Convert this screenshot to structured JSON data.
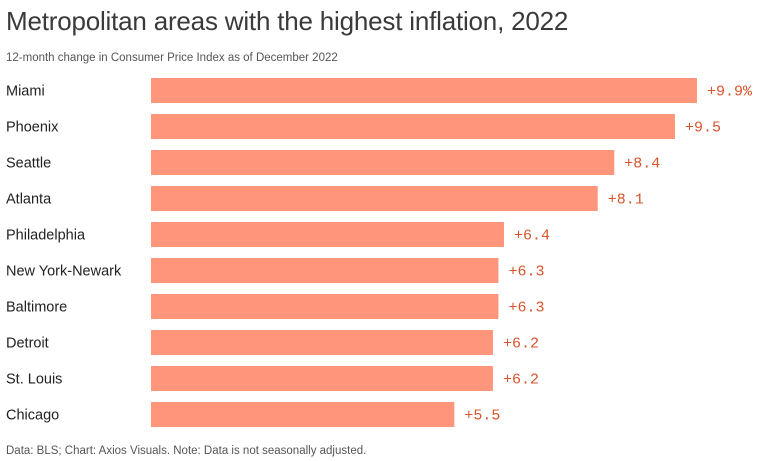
{
  "chart_data": {
    "type": "bar",
    "orientation": "horizontal",
    "title": "Metropolitan areas with the highest inflation, 2022",
    "subtitle": "12-month change in Consumer Price Index as of December 2022",
    "footer": "Data: BLS; Chart: Axios Visuals. Note: Data is not seasonally adjusted.",
    "categories": [
      "Miami",
      "Phoenix",
      "Seattle",
      "Atlanta",
      "Philadelphia",
      "New York-Newark",
      "Baltimore",
      "Detroit",
      "St. Louis",
      "Chicago"
    ],
    "values": [
      9.9,
      9.5,
      8.4,
      8.1,
      6.4,
      6.3,
      6.3,
      6.2,
      6.2,
      5.5
    ],
    "data_labels": [
      "+9.9%",
      "+9.5",
      "+8.4",
      "+8.1",
      "+6.4",
      "+6.3",
      "+6.3",
      "+6.2",
      "+6.2",
      "+5.5"
    ],
    "xlim": [
      0,
      9.9
    ],
    "grid": false,
    "legend": "none",
    "colors": {
      "bar": "#ff967b",
      "value_label": "#d9532b"
    }
  }
}
